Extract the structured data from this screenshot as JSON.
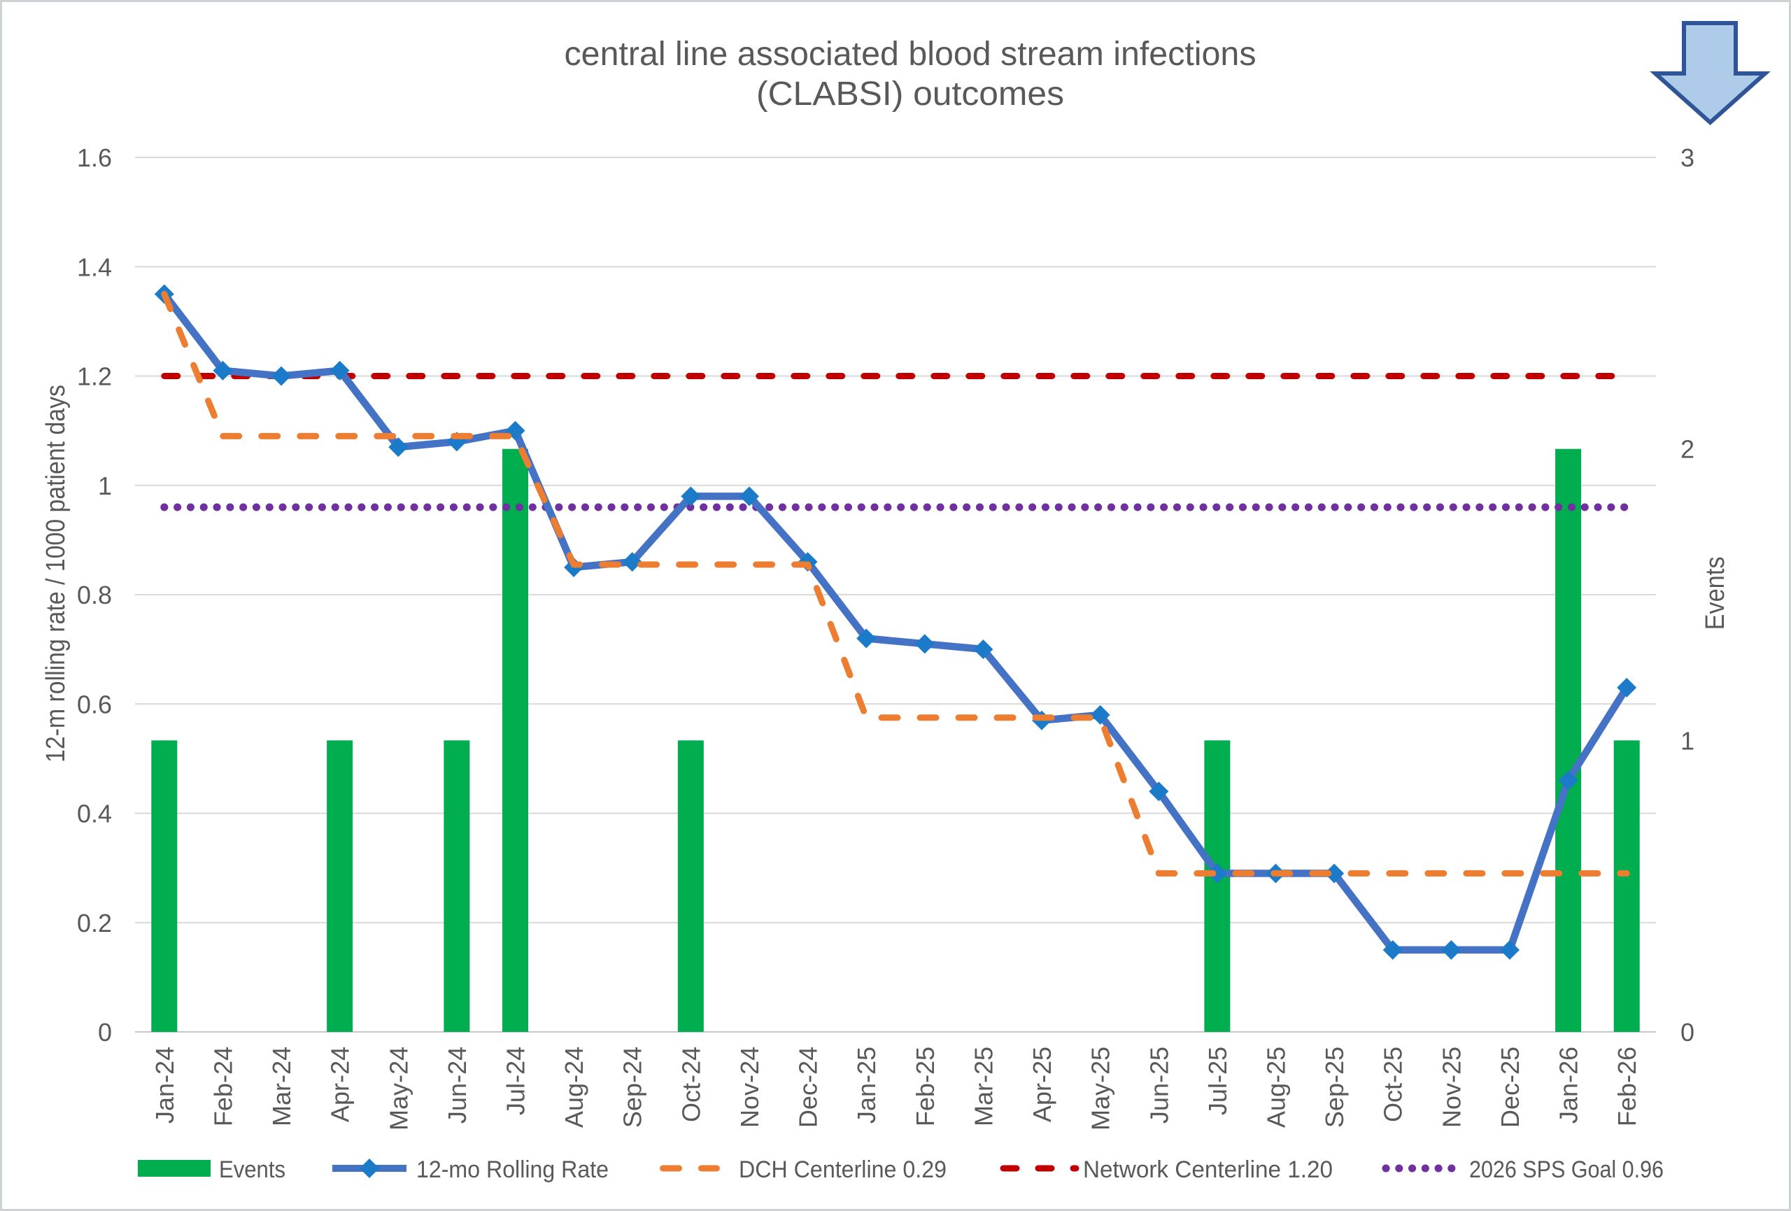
{
  "title": {
    "line1": "central line associated blood stream infections",
    "line2": "(CLABSI) outcomes"
  },
  "icons": {
    "down_arrow": "down-arrow"
  },
  "colors": {
    "events_bar": "#00AE50",
    "rolling_line": "#4472C4",
    "rolling_marker": "#1B7BC9",
    "dch_centerline": "#ED7D31",
    "network_centerline": "#C00000",
    "sps_goal": "#7030A0",
    "gridline": "#D9D9D9",
    "axis_line": "#C8C8C8",
    "text": "#595959",
    "arrow_fill": "#AECBEA",
    "arrow_stroke": "#2F5597"
  },
  "chart_data": {
    "type": "combo",
    "categories": [
      "Jan-24",
      "Feb-24",
      "Mar-24",
      "Apr-24",
      "May-24",
      "Jun-24",
      "Jul-24",
      "Aug-24",
      "Sep-24",
      "Oct-24",
      "Nov-24",
      "Dec-24",
      "Jan-25",
      "Feb-25",
      "Mar-25",
      "Apr-25",
      "May-25",
      "Jun-25",
      "Jul-25",
      "Aug-25",
      "Sep-25",
      "Oct-25",
      "Nov-25",
      "Dec-25",
      "Jan-26",
      "Feb-26"
    ],
    "series": [
      {
        "name": "Events",
        "type": "bar",
        "axis": "right",
        "color": "#00AE50",
        "values": [
          1,
          0,
          0,
          1,
          0,
          1,
          2,
          0,
          0,
          1,
          0,
          0,
          0,
          0,
          0,
          0,
          0,
          0,
          1,
          0,
          0,
          0,
          0,
          0,
          2,
          1
        ]
      },
      {
        "name": "12-mo Rolling Rate",
        "type": "line",
        "axis": "left",
        "color": "#4472C4",
        "marker": "diamond",
        "marker_color": "#1B7BC9",
        "values": [
          1.35,
          1.21,
          1.2,
          1.21,
          1.07,
          1.08,
          1.1,
          0.85,
          0.86,
          0.98,
          0.98,
          0.86,
          0.72,
          0.71,
          0.7,
          0.57,
          0.58,
          0.44,
          0.29,
          0.29,
          0.29,
          0.15,
          0.15,
          0.15,
          0.46,
          0.63
        ]
      },
      {
        "name": "DCH Centerline 0.29",
        "type": "line",
        "dash": "dash",
        "axis": "left",
        "color": "#ED7D31",
        "values": [
          1.35,
          1.09,
          1.09,
          1.09,
          1.09,
          1.09,
          1.09,
          0.855,
          0.855,
          0.855,
          0.855,
          0.855,
          0.575,
          0.575,
          0.575,
          0.575,
          0.575,
          0.29,
          0.29,
          0.29,
          0.29,
          0.29,
          0.29,
          0.29,
          0.29,
          0.29
        ]
      },
      {
        "name": "Network Centerline 1.20",
        "type": "line",
        "dash": "long-dash",
        "axis": "left",
        "color": "#C00000",
        "constant": 1.2
      },
      {
        "name": "2026 SPS Goal 0.96",
        "type": "line",
        "dash": "dot",
        "axis": "left",
        "color": "#7030A0",
        "constant": 0.96
      }
    ],
    "left_axis": {
      "title": "12-m rolling rate / 1000 patient days",
      "min": 0,
      "max": 1.6,
      "tick_step": 0.2,
      "tick_labels": [
        "0",
        "0.2",
        "0.4",
        "0.6",
        "0.8",
        "1",
        "1.2",
        "1.4",
        "1.6"
      ]
    },
    "right_axis": {
      "title": "Events",
      "min": 0,
      "max": 3,
      "tick_step": 1,
      "tick_labels": [
        "0",
        "1",
        "2",
        "3"
      ]
    },
    "grid": true,
    "legend_position": "bottom"
  }
}
